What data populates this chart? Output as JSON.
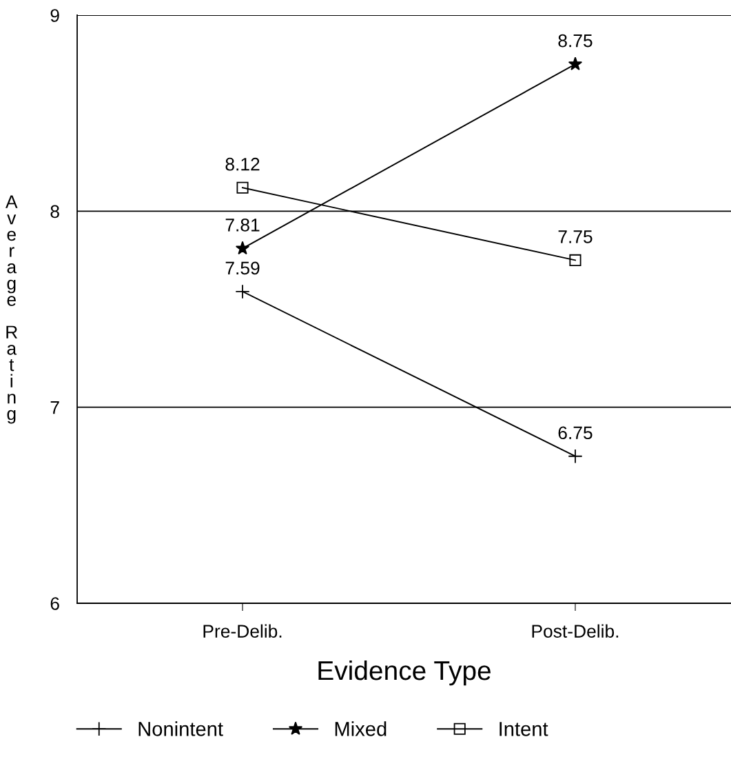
{
  "chart_data": {
    "type": "line",
    "xlabel": "Evidence Type",
    "ylabel": "Average Rating",
    "categories": [
      "Pre-Delib.",
      "Post-Delib."
    ],
    "series": [
      {
        "name": "Nonintent",
        "color": "#000000",
        "marker": "cross",
        "values": [
          7.59,
          6.75
        ]
      },
      {
        "name": "Mixed",
        "color": "#000000",
        "marker": "star",
        "values": [
          7.81,
          8.75
        ]
      },
      {
        "name": "Intent",
        "color": "#000000",
        "marker": "square",
        "values": [
          8.12,
          7.75
        ]
      }
    ],
    "ylim": [
      6,
      9
    ],
    "yticks": [
      6,
      7,
      8,
      9
    ],
    "grid": "y",
    "legend": "bottom",
    "data_labels": true,
    "line_style": "solid"
  }
}
